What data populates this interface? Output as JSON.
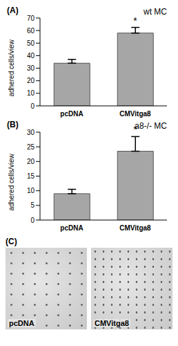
{
  "chart_data": [
    {
      "type": "bar",
      "label": "(A)",
      "title": "wt MC",
      "y_label": "adhered cells/view",
      "categories": [
        "pcDNA",
        "CMVitga8"
      ],
      "values": [
        34,
        58
      ],
      "errors": [
        3,
        4.5
      ],
      "color": "#a6a6a6",
      "ylim": [
        0,
        70
      ],
      "yticks": [
        0,
        10,
        20,
        30,
        40,
        50,
        60,
        70
      ],
      "grid": false,
      "annotations": [
        {
          "text": "*",
          "category": "CMVitga8"
        }
      ]
    },
    {
      "type": "bar",
      "label": "(B)",
      "title": "a8-/- MC",
      "y_label": "adhered cells/view",
      "categories": [
        "pcDNA",
        "CMVitga8"
      ],
      "values": [
        9,
        23.5
      ],
      "errors": [
        1.5,
        5
      ],
      "color": "#a6a6a6",
      "ylim": [
        0,
        30
      ],
      "yticks": [
        0,
        5,
        10,
        15,
        20,
        25,
        30
      ],
      "grid": false,
      "annotations": [
        {
          "text": "*",
          "category": "CMVitga8"
        }
      ]
    }
  ],
  "images": {
    "label": "(C)",
    "captions": [
      "pcDNA",
      "CMVitga8"
    ]
  }
}
